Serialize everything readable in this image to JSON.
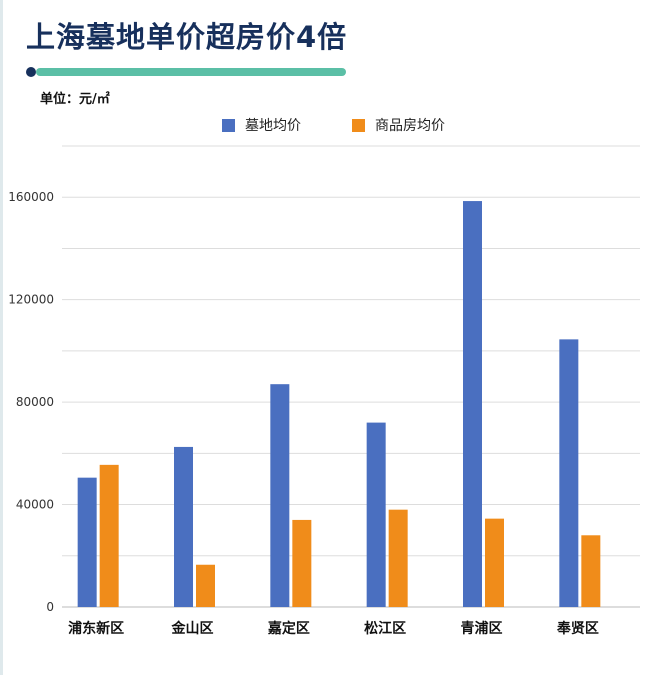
{
  "header": {
    "title": "上海墓地单价超房价4倍",
    "unit": "单位：元/㎡",
    "accent_color": "#5bbfa6",
    "accent_dot_color": "#17305c"
  },
  "legend": {
    "items": [
      {
        "label": "墓地均价",
        "color": "#4a6fc0"
      },
      {
        "label": "商品房均价",
        "color": "#f08c1a"
      }
    ]
  },
  "chart_data": {
    "type": "bar",
    "categories": [
      "浦东新区",
      "金山区",
      "嘉定区",
      "松江区",
      "青浦区",
      "奉贤区"
    ],
    "series": [
      {
        "name": "墓地均价",
        "color": "#4a6fc0",
        "values": [
          50500,
          62500,
          87000,
          72000,
          158500,
          104500
        ]
      },
      {
        "name": "商品房均价",
        "color": "#f08c1a",
        "values": [
          55500,
          16500,
          34000,
          38000,
          34500,
          28000
        ]
      }
    ],
    "ylim": [
      0,
      180000
    ],
    "yticks": [
      0,
      40000,
      80000,
      120000,
      160000
    ],
    "ytick_labels": [
      "0",
      "40000",
      "80000",
      "120000",
      "160000"
    ],
    "grid": true,
    "legend_position": "top-center"
  }
}
